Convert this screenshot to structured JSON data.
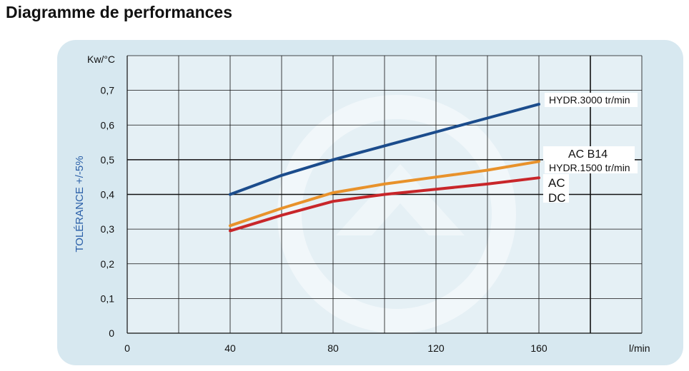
{
  "page": {
    "title": "Diagramme de performances"
  },
  "colors": {
    "panel": "#d7e8f0",
    "hydr3000": "#1b4c8c",
    "acb14": "#e8922b",
    "ac": "#c8262a",
    "ylabel": "#2a5fa8",
    "grid": "#111111"
  },
  "chart_data": {
    "type": "line",
    "ylabel": "TOLÉRANCE +/-5%",
    "y_unit": "Kw/°C",
    "x_unit": "l/min",
    "xlim": [
      0,
      200
    ],
    "ylim": [
      0,
      0.8
    ],
    "x_ticks": [
      "0",
      "40",
      "80",
      "120",
      "160"
    ],
    "x_tick_values": [
      0,
      40,
      80,
      120,
      160
    ],
    "y_ticks": [
      "0",
      "0,1",
      "0,2",
      "0,3",
      "0,4",
      "0,5",
      "0,6",
      "0,7"
    ],
    "y_tick_values": [
      0,
      0.1,
      0.2,
      0.3,
      0.4,
      0.5,
      0.6,
      0.7
    ],
    "grid": true,
    "series": [
      {
        "name": "HYDR.3000 tr/min",
        "color": "#1b4c8c",
        "x": [
          40,
          60,
          80,
          100,
          120,
          140,
          160
        ],
        "y": [
          0.4,
          0.455,
          0.5,
          0.54,
          0.58,
          0.62,
          0.66
        ]
      },
      {
        "name": "AC B14",
        "color": "#e8922b",
        "x": [
          40,
          60,
          80,
          100,
          120,
          140,
          160
        ],
        "y": [
          0.31,
          0.36,
          0.405,
          0.43,
          0.45,
          0.47,
          0.495
        ]
      },
      {
        "name": "AC",
        "color": "#c8262a",
        "x": [
          40,
          60,
          80,
          100,
          120,
          140,
          160
        ],
        "y": [
          0.295,
          0.34,
          0.38,
          0.4,
          0.415,
          0.43,
          0.448
        ]
      }
    ],
    "annotations": [
      "HYDR.1500 tr/min",
      "DC"
    ]
  }
}
